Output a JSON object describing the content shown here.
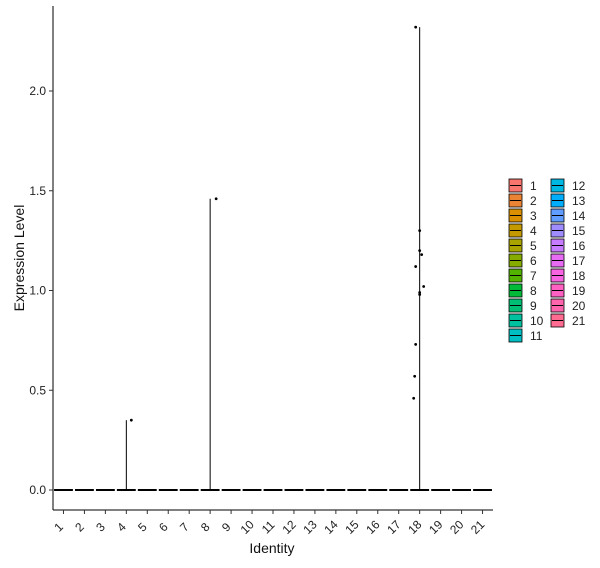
{
  "chart_data": {
    "type": "violin",
    "title": "",
    "xlabel": "Identity",
    "ylabel": "Expression Level",
    "ylim": [
      -0.1,
      2.42
    ],
    "yticks": [
      0.0,
      0.5,
      1.0,
      1.5,
      2.0
    ],
    "ytick_labels": [
      "0.0",
      "0.5",
      "1.0",
      "1.5",
      "2.0"
    ],
    "grid": false,
    "legend_position": "right",
    "legend_title": "",
    "categories": [
      "1",
      "2",
      "3",
      "4",
      "5",
      "6",
      "7",
      "8",
      "9",
      "10",
      "11",
      "12",
      "13",
      "14",
      "15",
      "16",
      "17",
      "18",
      "19",
      "20",
      "21"
    ],
    "colors": [
      "#F8766D",
      "#EB8335",
      "#DA8F00",
      "#C49A00",
      "#A9A400",
      "#86AC00",
      "#53B400",
      "#00BA38",
      "#00BF74",
      "#00C19F",
      "#00BFC4",
      "#00B9E3",
      "#00ADFA",
      "#619CFF",
      "#9F8CFF",
      "#C77CFF",
      "#E76BF3",
      "#F763E0",
      "#FF61C3",
      "#FF65AC",
      "#FF6C91"
    ],
    "violin_max": [
      0,
      0,
      0,
      0.35,
      0,
      0,
      0,
      1.46,
      0,
      0,
      0,
      0,
      0,
      0,
      0,
      0,
      0,
      2.32,
      0,
      0,
      0
    ],
    "points": [
      {
        "category": "4",
        "value": 0.35
      },
      {
        "category": "8",
        "value": 1.46
      },
      {
        "category": "18",
        "value": 2.32
      },
      {
        "category": "18",
        "value": 1.3
      },
      {
        "category": "18",
        "value": 1.2
      },
      {
        "category": "18",
        "value": 1.18
      },
      {
        "category": "18",
        "value": 1.12
      },
      {
        "category": "18",
        "value": 1.02
      },
      {
        "category": "18",
        "value": 0.99
      },
      {
        "category": "18",
        "value": 0.98
      },
      {
        "category": "18",
        "value": 0.73
      },
      {
        "category": "18",
        "value": 0.57
      },
      {
        "category": "18",
        "value": 0.46
      }
    ]
  }
}
